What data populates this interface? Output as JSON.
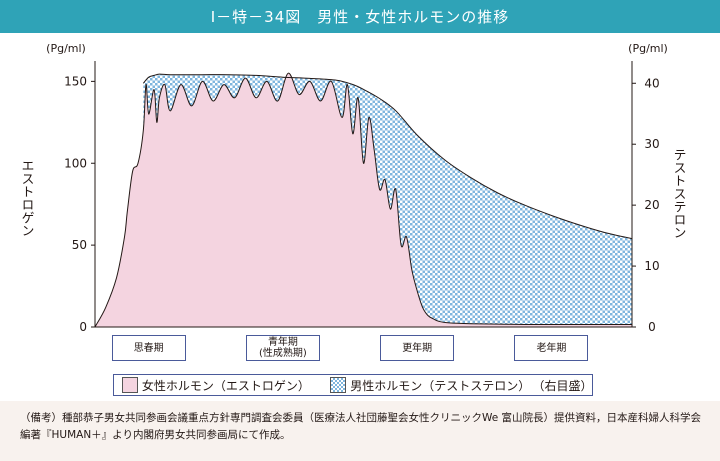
{
  "title": "Ⅰ－特－34図　男性・女性ホルモンの推移",
  "chart_data": {
    "type": "area",
    "y_left": {
      "label": "エストロゲン",
      "unit": "(Pg/ml)",
      "ticks": [
        0,
        50,
        100,
        150
      ],
      "range": [
        0,
        160
      ]
    },
    "y_right": {
      "label": "テストステロン",
      "unit": "(Pg/ml)",
      "ticks": [
        0,
        10,
        20,
        30,
        40
      ],
      "range": [
        0,
        43
      ]
    },
    "x_range": [
      0,
      100
    ],
    "stages": [
      {
        "label": "思春期",
        "x": 10
      },
      {
        "label": "青年期\n(性成熟期)",
        "x": 35
      },
      {
        "label": "更年期",
        "x": 60
      },
      {
        "label": "老年期",
        "x": 85
      }
    ],
    "series": [
      {
        "name": "女性ホルモン（エストロゲン）",
        "axis": "left",
        "color": "#f4d4e0",
        "x": [
          0,
          2,
          4,
          5.5,
          6,
          7,
          8,
          9,
          9.5,
          10,
          11,
          11.5,
          12,
          13,
          14,
          16,
          18,
          20,
          22,
          24,
          26,
          28,
          30,
          32,
          34,
          36,
          38,
          40,
          42,
          44,
          46,
          47,
          48,
          49,
          50,
          51,
          52,
          53,
          54,
          55,
          56,
          57,
          58,
          59,
          60,
          61,
          62,
          63,
          64,
          66,
          70,
          75,
          80,
          90,
          100
        ],
        "values": [
          0,
          12,
          30,
          55,
          70,
          95,
          100,
          120,
          148,
          130,
          145,
          125,
          140,
          148,
          132,
          148,
          135,
          150,
          138,
          148,
          140,
          152,
          140,
          150,
          138,
          155,
          142,
          150,
          138,
          150,
          128,
          148,
          118,
          140,
          100,
          128,
          108,
          84,
          90,
          72,
          84,
          50,
          55,
          35,
          22,
          12,
          7,
          5,
          3.5,
          2.5,
          2,
          1.8,
          1.5,
          1.5,
          1.5
        ]
      },
      {
        "name": "男性ホルモン（テストステロン）",
        "suffix": "（右目盛）",
        "axis": "right",
        "color": "#7fb6de",
        "x": [
          9,
          10,
          11,
          12,
          14,
          17,
          20,
          25,
          30,
          35,
          40,
          45,
          48,
          50,
          53,
          56,
          60,
          65,
          70,
          75,
          80,
          85,
          90,
          95,
          100
        ],
        "values": [
          40.0,
          41.0,
          41.3,
          41.5,
          41.4,
          41.4,
          41.4,
          41.4,
          41.3,
          41.0,
          40.8,
          40.5,
          39.8,
          39.0,
          37.5,
          35.5,
          31.5,
          27.5,
          24.5,
          22.0,
          20.0,
          18.3,
          16.8,
          15.5,
          14.5
        ]
      }
    ]
  },
  "note": "（備考）種部恭子男女共同参画会議重点方針専門調査会委員（医療法人社団藤聖会女性クリニックWe 富山院長）提供資料，日本産科婦人科学会編著『HUMAN＋』より内閣府男女共同参画局にて作成。"
}
